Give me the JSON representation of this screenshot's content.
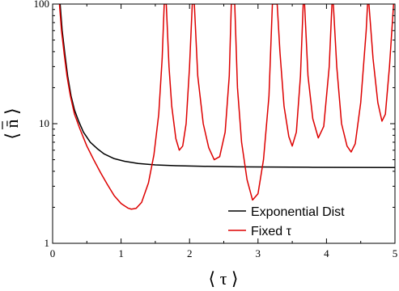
{
  "chart_data": {
    "type": "line",
    "x_scale": "linear",
    "y_scale": "log",
    "xlim": [
      0,
      5
    ],
    "ylim": [
      1,
      100
    ],
    "x_ticks": [
      0,
      1,
      2,
      3,
      4,
      5
    ],
    "x_tick_labels": [
      "0",
      "1",
      "2",
      "3",
      "4",
      "5"
    ],
    "y_ticks": [
      1,
      10,
      100
    ],
    "y_tick_labels": [
      "1",
      "10",
      "100"
    ],
    "xlabel": "⟨ τ ⟩",
    "ylabel": "⟨ n̄ ⟩",
    "grid": false,
    "legend_position": "bottom-right",
    "series": [
      {
        "name": "Exponential Dist",
        "color": "#000000",
        "points": [
          [
            0.11,
            100
          ],
          [
            0.14,
            60
          ],
          [
            0.18,
            38
          ],
          [
            0.22,
            25
          ],
          [
            0.27,
            17
          ],
          [
            0.32,
            13
          ],
          [
            0.38,
            10.5
          ],
          [
            0.45,
            8.5
          ],
          [
            0.55,
            7.0
          ],
          [
            0.65,
            6.2
          ],
          [
            0.75,
            5.6
          ],
          [
            0.9,
            5.1
          ],
          [
            1.05,
            4.85
          ],
          [
            1.25,
            4.65
          ],
          [
            1.5,
            4.52
          ],
          [
            1.8,
            4.45
          ],
          [
            2.2,
            4.4
          ],
          [
            2.7,
            4.36
          ],
          [
            3.2,
            4.34
          ],
          [
            3.8,
            4.32
          ],
          [
            4.4,
            4.31
          ],
          [
            5.0,
            4.3
          ]
        ]
      },
      {
        "name": "Fixed τ",
        "color": "#dd0000",
        "points": [
          [
            0.1,
            100
          ],
          [
            0.13,
            60
          ],
          [
            0.17,
            38
          ],
          [
            0.21,
            25
          ],
          [
            0.26,
            17
          ],
          [
            0.32,
            12
          ],
          [
            0.4,
            9.0
          ],
          [
            0.5,
            6.5
          ],
          [
            0.6,
            5.0
          ],
          [
            0.7,
            3.9
          ],
          [
            0.8,
            3.1
          ],
          [
            0.9,
            2.5
          ],
          [
            1.0,
            2.15
          ],
          [
            1.1,
            1.97
          ],
          [
            1.15,
            1.93
          ],
          [
            1.22,
            1.96
          ],
          [
            1.3,
            2.2
          ],
          [
            1.4,
            3.2
          ],
          [
            1.48,
            5.5
          ],
          [
            1.55,
            12
          ],
          [
            1.6,
            35
          ],
          [
            1.63,
            100
          ],
          [
            1.66,
            100
          ],
          [
            1.7,
            30
          ],
          [
            1.74,
            14
          ],
          [
            1.8,
            7.5
          ],
          [
            1.85,
            6.0
          ],
          [
            1.9,
            6.5
          ],
          [
            1.95,
            10
          ],
          [
            2.0,
            30
          ],
          [
            2.04,
            100
          ],
          [
            2.07,
            100
          ],
          [
            2.12,
            25
          ],
          [
            2.2,
            10
          ],
          [
            2.28,
            6.3
          ],
          [
            2.36,
            5.0
          ],
          [
            2.44,
            5.3
          ],
          [
            2.52,
            8.5
          ],
          [
            2.58,
            25
          ],
          [
            2.61,
            100
          ],
          [
            2.66,
            100
          ],
          [
            2.7,
            20
          ],
          [
            2.76,
            7.0
          ],
          [
            2.84,
            3.4
          ],
          [
            2.92,
            2.3
          ],
          [
            3.0,
            2.6
          ],
          [
            3.08,
            5.0
          ],
          [
            3.16,
            17
          ],
          [
            3.21,
            100
          ],
          [
            3.28,
            100
          ],
          [
            3.32,
            40
          ],
          [
            3.38,
            14
          ],
          [
            3.45,
            7.8
          ],
          [
            3.5,
            6.5
          ],
          [
            3.56,
            8.5
          ],
          [
            3.62,
            25
          ],
          [
            3.66,
            100
          ],
          [
            3.68,
            100
          ],
          [
            3.73,
            25
          ],
          [
            3.8,
            11
          ],
          [
            3.88,
            7.6
          ],
          [
            3.96,
            9.5
          ],
          [
            4.04,
            30
          ],
          [
            4.08,
            100
          ],
          [
            4.1,
            100
          ],
          [
            4.15,
            30
          ],
          [
            4.22,
            10
          ],
          [
            4.3,
            6.5
          ],
          [
            4.36,
            5.8
          ],
          [
            4.42,
            6.8
          ],
          [
            4.5,
            15
          ],
          [
            4.58,
            60
          ],
          [
            4.6,
            100
          ],
          [
            4.62,
            100
          ],
          [
            4.68,
            35
          ],
          [
            4.75,
            15
          ],
          [
            4.81,
            10.5
          ],
          [
            4.86,
            12
          ],
          [
            4.92,
            30
          ],
          [
            4.98,
            100
          ]
        ]
      }
    ]
  }
}
